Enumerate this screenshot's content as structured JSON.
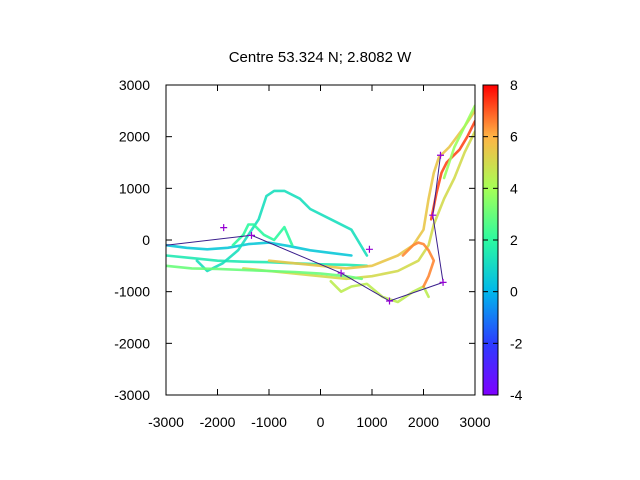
{
  "chart_data": {
    "type": "scatter",
    "title": "Centre 53.324 N; 2.8082  W",
    "xlabel": "",
    "ylabel": "",
    "xlim": [
      -3000,
      3000
    ],
    "ylim": [
      -3000,
      3000
    ],
    "x_ticks": [
      -3000,
      -2000,
      -1000,
      0,
      1000,
      2000,
      3000
    ],
    "y_ticks": [
      -3000,
      -2000,
      -1000,
      0,
      1000,
      2000,
      3000
    ],
    "grid": false,
    "colorbar": {
      "range": [
        -4,
        8
      ],
      "ticks": [
        -4,
        -2,
        0,
        2,
        4,
        6,
        8
      ],
      "colormap": "rainbow (purple to red)",
      "stops": [
        "#7f00ff",
        "#2c3cff",
        "#00b7eb",
        "#2cfaa0",
        "#a6ff56",
        "#ffb445",
        "#ff0000"
      ],
      "placement": "right"
    },
    "tracks": [
      {
        "color_value": 0.5,
        "x": [
          -3000,
          -2600,
          -2200,
          -1800,
          -1400,
          -1000,
          -600,
          -200,
          200,
          600
        ],
        "y": [
          -100,
          -150,
          -180,
          -150,
          -80,
          -50,
          -120,
          -200,
          -250,
          -300
        ]
      },
      {
        "color_value": 1.5,
        "x": [
          -3000,
          -2500,
          -2000,
          -1500,
          -1000,
          -500,
          0,
          500,
          900
        ],
        "y": [
          -300,
          -350,
          -400,
          -420,
          -430,
          -450,
          -470,
          -480,
          -500
        ]
      },
      {
        "color_value": 1.2,
        "x": [
          -2400,
          -2200,
          -1900,
          -1600,
          -1400,
          -1200,
          -1050,
          -900,
          -700,
          -400,
          -200,
          200,
          600,
          900
        ],
        "y": [
          -400,
          -600,
          -450,
          -200,
          100,
          400,
          850,
          950,
          950,
          800,
          600,
          400,
          200,
          -300
        ]
      },
      {
        "color_value": 2.0,
        "x": [
          -1700,
          -1500,
          -1400,
          -1300,
          -1100,
          -900,
          -700,
          -550
        ],
        "y": [
          -100,
          100,
          300,
          300,
          100,
          0,
          250,
          -100
        ]
      },
      {
        "color_value": 5.5,
        "x": [
          -1000,
          -500,
          0,
          500,
          1000,
          1500,
          1800,
          2000,
          2100,
          2200,
          2300,
          2500,
          2800,
          3000
        ],
        "y": [
          -400,
          -450,
          -500,
          -550,
          -500,
          -300,
          -100,
          200,
          800,
          1300,
          1600,
          1800,
          2200,
          2500
        ]
      },
      {
        "color_value": 5.0,
        "x": [
          -1500,
          -1000,
          -500,
          0,
          500,
          1000,
          1500,
          1900,
          2100,
          2200,
          2400,
          2600,
          2800,
          3000
        ],
        "y": [
          -550,
          -600,
          -650,
          -700,
          -750,
          -700,
          -600,
          -400,
          -100,
          300,
          800,
          1200,
          1700,
          2100
        ]
      },
      {
        "color_value": 3.0,
        "x": [
          -3000,
          -2500,
          -2000,
          -1500,
          -1000,
          -500,
          0,
          500,
          800
        ],
        "y": [
          -500,
          -550,
          -560,
          -580,
          -600,
          -620,
          -650,
          -700,
          -750
        ]
      },
      {
        "color_value": 4.5,
        "x": [
          200,
          400,
          600,
          900,
          1200,
          1500,
          1800,
          2000,
          2100
        ],
        "y": [
          -800,
          -1000,
          -900,
          -850,
          -1100,
          -1200,
          -1000,
          -900,
          -1100
        ]
      },
      {
        "color_value": 7.2,
        "x": [
          2150,
          2250,
          2350,
          2450,
          2550,
          2700,
          2850,
          3000
        ],
        "y": [
          400,
          900,
          1300,
          1500,
          1600,
          1750,
          2000,
          2300
        ]
      },
      {
        "color_value": 3.8,
        "x": [
          2400,
          2600,
          2800,
          3000
        ],
        "y": [
          1200,
          1800,
          2200,
          2600
        ]
      },
      {
        "color_value": 6.5,
        "x": [
          1600,
          1800,
          1900,
          2000,
          2100,
          2200,
          2100,
          2000
        ],
        "y": [
          -300,
          -100,
          -50,
          -80,
          -200,
          -400,
          -700,
          -900
        ]
      }
    ],
    "markers": [
      {
        "x": -1880,
        "y": 240
      },
      {
        "x": -1340,
        "y": 90
      },
      {
        "x": 400,
        "y": -640
      },
      {
        "x": 950,
        "y": -180
      },
      {
        "x": 1340,
        "y": -1180
      },
      {
        "x": 2180,
        "y": 480
      },
      {
        "x": 2330,
        "y": 1640
      },
      {
        "x": 2380,
        "y": -820
      }
    ],
    "route": [
      {
        "x": -3000,
        "y": -100
      },
      {
        "x": -1340,
        "y": 90
      },
      {
        "x": 400,
        "y": -640
      },
      {
        "x": 1340,
        "y": -1180
      },
      {
        "x": 2380,
        "y": -820
      },
      {
        "x": 2180,
        "y": 480
      },
      {
        "x": 2330,
        "y": 1640
      }
    ],
    "colors": {
      "route_line": "#3a1e8c",
      "marker": "#9400d3",
      "axis": "#000000"
    }
  }
}
